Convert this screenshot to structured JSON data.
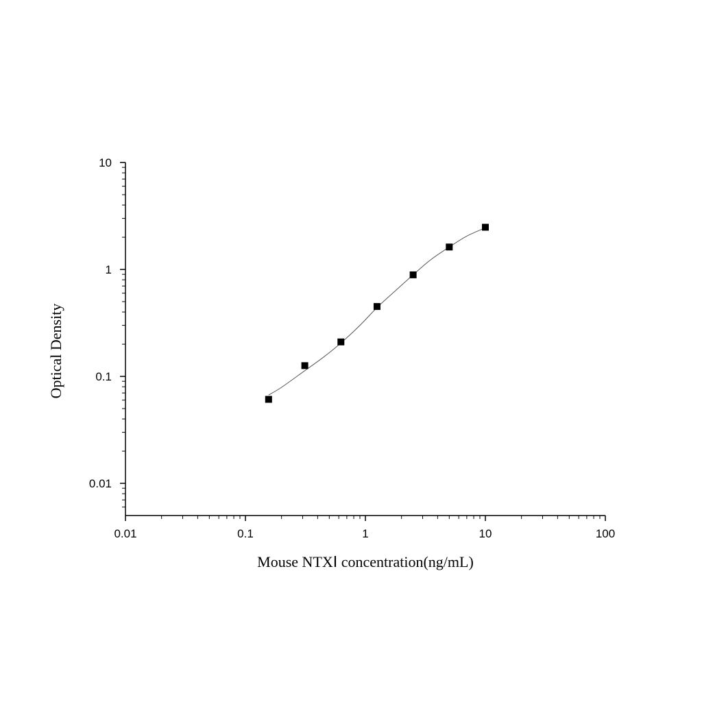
{
  "chart_data": {
    "type": "scatter",
    "title": "",
    "xlabel": "Mouse NTXⅠ concentration(ng/mL)",
    "ylabel": "Optical Density",
    "xscale": "log",
    "yscale": "log",
    "xlim": [
      0.01,
      100
    ],
    "ylim": [
      0.005,
      10
    ],
    "x_ticks": [
      {
        "value": 0.01,
        "label": "0.01"
      },
      {
        "value": 0.1,
        "label": "0.1"
      },
      {
        "value": 1,
        "label": "1"
      },
      {
        "value": 10,
        "label": "10"
      },
      {
        "value": 100,
        "label": "100"
      }
    ],
    "y_ticks": [
      {
        "value": 0.01,
        "label": "0.01"
      },
      {
        "value": 0.1,
        "label": "0.1"
      },
      {
        "value": 1,
        "label": "1"
      },
      {
        "value": 10,
        "label": "10"
      }
    ],
    "grid": false,
    "legend": "none",
    "series": [
      {
        "marker": "square",
        "color": "#000000",
        "x": [
          0.156,
          0.3125,
          0.625,
          1.25,
          2.5,
          5,
          10
        ],
        "y": [
          0.061,
          0.126,
          0.21,
          0.45,
          0.89,
          1.62,
          2.48
        ]
      }
    ],
    "fit_curve": {
      "color": "#555555",
      "x": [
        0.156,
        0.2,
        0.3125,
        0.45,
        0.625,
        0.9,
        1.25,
        1.8,
        2.5,
        3.5,
        5,
        7,
        10
      ],
      "y": [
        0.067,
        0.079,
        0.113,
        0.152,
        0.205,
        0.3,
        0.44,
        0.64,
        0.89,
        1.23,
        1.62,
        2.05,
        2.45
      ]
    }
  }
}
